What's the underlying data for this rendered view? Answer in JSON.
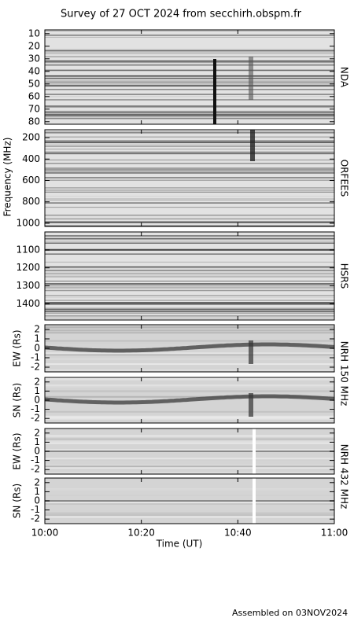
{
  "title": "Survey of 27 OCT 2024 from secchirh.obspm.fr",
  "ylabel": "Frequency (MHz)",
  "xaxis": {
    "label": "Time (UT)",
    "lim": [
      0,
      60
    ],
    "ticks": [
      {
        "value": 0,
        "label": "10:00"
      },
      {
        "value": 20,
        "label": "10:20"
      },
      {
        "value": 40,
        "label": "10:40"
      },
      {
        "value": 60,
        "label": "11:00"
      }
    ]
  },
  "panels": [
    {
      "type": "spectrogram",
      "side_label": "NDA",
      "inverted": true,
      "ylim": [
        7,
        82
      ],
      "yticks": [
        10,
        20,
        30,
        40,
        50,
        60,
        70,
        80
      ]
    },
    {
      "type": "spectrogram",
      "side_label": "ORFEES",
      "inverted": true,
      "ylim": [
        126,
        1030
      ],
      "yticks": [
        200,
        400,
        600,
        800,
        1000
      ]
    },
    {
      "type": "spectrogram",
      "side_label": "HSRS",
      "inverted": true,
      "ylim": [
        1000,
        1490
      ],
      "yticks": [
        1100,
        1200,
        1300,
        1400
      ]
    },
    {
      "type": "nrh",
      "ylabel": "EW (Rs)",
      "inverted": false,
      "ylim": [
        -2.5,
        2.5
      ],
      "yticks": [
        -2,
        -1,
        0,
        1,
        2
      ]
    },
    {
      "type": "nrh",
      "ylabel": "SN (Rs)",
      "inverted": false,
      "ylim": [
        -2.5,
        2.5
      ],
      "yticks": [
        -2,
        -1,
        0,
        1,
        2
      ]
    },
    {
      "type": "nrh",
      "ylabel": "EW (Rs)",
      "inverted": false,
      "ylim": [
        -2.5,
        2.5
      ],
      "yticks": [
        -2,
        -1,
        0,
        1,
        2
      ]
    },
    {
      "type": "nrh",
      "ylabel": "SN (Rs)",
      "inverted": false,
      "ylim": [
        -2.5,
        2.5
      ],
      "yticks": [
        -2,
        -1,
        0,
        1,
        2
      ]
    }
  ],
  "nrh_labels": [
    "NRH 150 MHz",
    "NRH 432 MHz"
  ],
  "footer": "Assembled on 03NOV2024"
}
